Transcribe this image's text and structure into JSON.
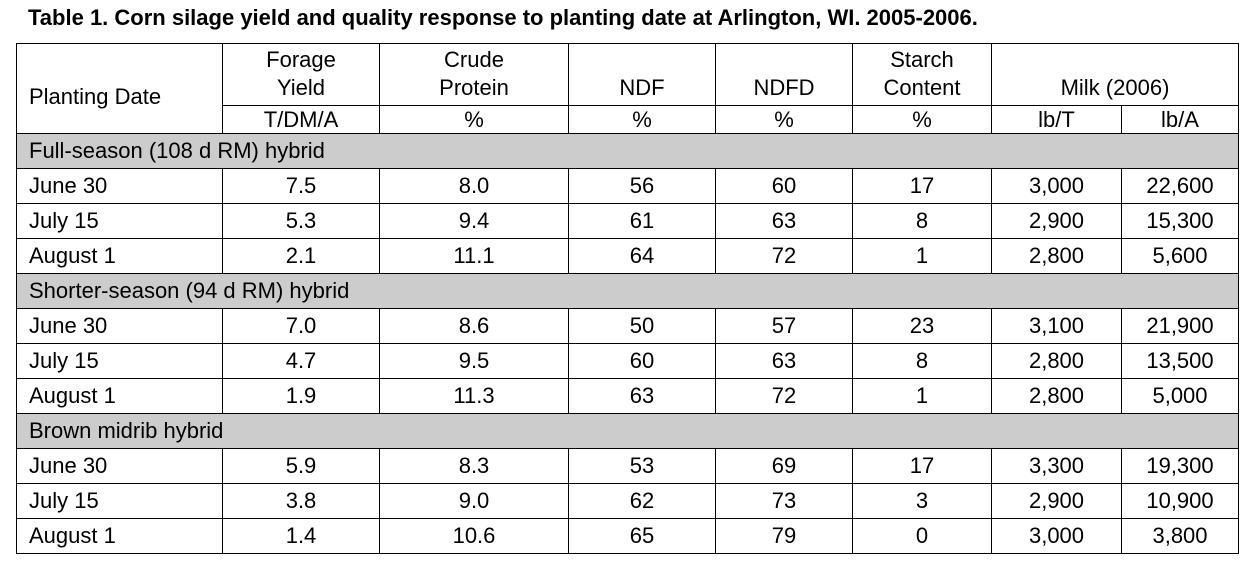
{
  "title": "Table 1. Corn silage yield and quality response to planting date at Arlington, WI. 2005-2006.",
  "headers": {
    "planting_date": "Planting Date",
    "forage_yield_1": "Forage",
    "forage_yield_2": "Yield",
    "crude_protein_1": "Crude",
    "crude_protein_2": "Protein",
    "ndf": "NDF",
    "ndfd": "NDFD",
    "starch_1": "Starch",
    "starch_2": "Content",
    "milk": "Milk (2006)"
  },
  "units": [
    "T/DM/A",
    "%",
    "%",
    "%",
    "%",
    "lb/T",
    "lb/A"
  ],
  "groups": [
    {
      "label": "Full-season (108 d RM) hybrid",
      "rows": [
        [
          "June 30",
          "7.5",
          "8.0",
          "56",
          "60",
          "17",
          "3,000",
          "22,600"
        ],
        [
          "July 15",
          "5.3",
          "9.4",
          "61",
          "63",
          "8",
          "2,900",
          "15,300"
        ],
        [
          "August 1",
          "2.1",
          "11.1",
          "64",
          "72",
          "1",
          "2,800",
          "5,600"
        ]
      ]
    },
    {
      "label": "Shorter-season (94 d RM) hybrid",
      "rows": [
        [
          "June 30",
          "7.0",
          "8.6",
          "50",
          "57",
          "23",
          "3,100",
          "21,900"
        ],
        [
          "July 15",
          "4.7",
          "9.5",
          "60",
          "63",
          "8",
          "2,800",
          "13,500"
        ],
        [
          "August 1",
          "1.9",
          "11.3",
          "63",
          "72",
          "1",
          "2,800",
          "5,000"
        ]
      ]
    },
    {
      "label": "Brown midrib hybrid",
      "rows": [
        [
          "June 30",
          "5.9",
          "8.3",
          "53",
          "69",
          "17",
          "3,300",
          "19,300"
        ],
        [
          "July 15",
          "3.8",
          "9.0",
          "62",
          "73",
          "3",
          "2,900",
          "10,900"
        ],
        [
          "August 1",
          "1.4",
          "10.6",
          "65",
          "79",
          "0",
          "3,000",
          "3,800"
        ]
      ]
    }
  ],
  "colors": {
    "group_band": "#cccccc",
    "border": "#000000"
  }
}
